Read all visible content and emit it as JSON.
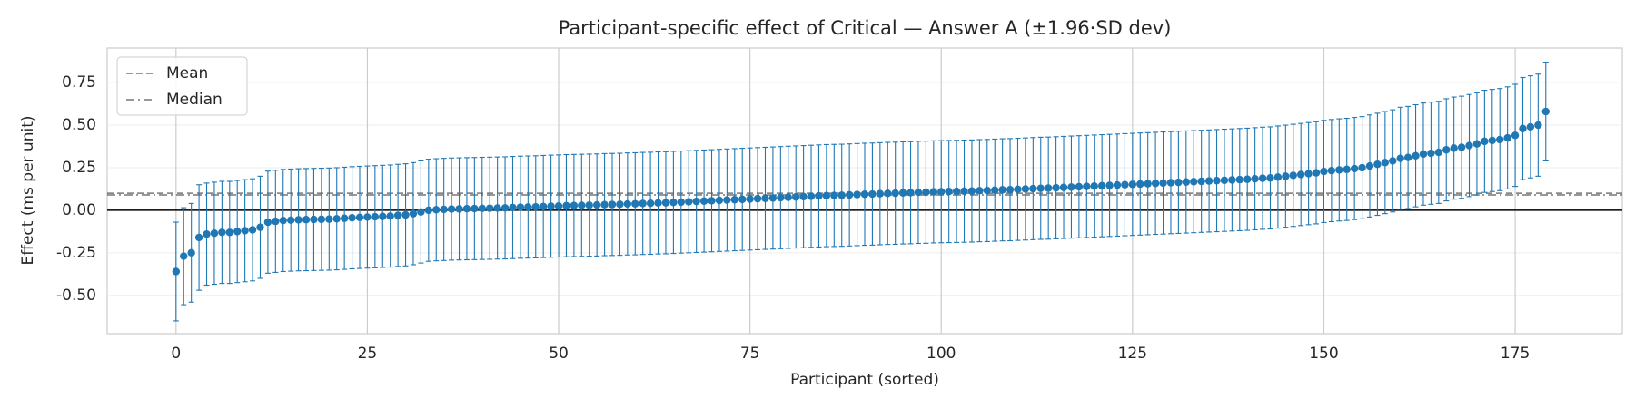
{
  "chart_data": {
    "type": "errorbar",
    "title": "Participant-specific effect of Critical — Answer A (±1.96·SD dev)",
    "xlabel": "Participant (sorted)",
    "ylabel": "Effect (ms per unit)",
    "color": "#1f77b4",
    "xlim": [
      -9,
      189
    ],
    "ylim": [
      -0.725,
      0.953
    ],
    "xticks": [
      0,
      25,
      50,
      75,
      100,
      125,
      150,
      175
    ],
    "yticks": [
      {
        "value": -0.5,
        "label": "-0.50"
      },
      -0.25,
      {
        "value": 0,
        "label": "0.00"
      },
      0.25,
      {
        "value": 0.5,
        "label": "0.50"
      },
      0.75
    ],
    "grid": true,
    "zero_line": true,
    "legend_position": "upper left",
    "reference_lines": [
      {
        "name": "Mean",
        "value": 0.1,
        "style": "dashed",
        "color": "#777777"
      },
      {
        "name": "Median",
        "value": 0.09,
        "style": "dashdot",
        "color": "#777777"
      }
    ],
    "x": [
      0,
      1,
      2,
      3,
      4,
      5,
      6,
      7,
      8,
      9,
      10,
      11,
      12,
      13,
      14,
      15,
      16,
      17,
      18,
      19,
      20,
      21,
      22,
      23,
      24,
      25,
      26,
      27,
      28,
      29,
      30,
      31,
      32,
      33,
      34,
      35,
      36,
      37,
      38,
      39,
      40,
      41,
      42,
      43,
      44,
      45,
      46,
      47,
      48,
      49,
      50,
      51,
      52,
      53,
      54,
      55,
      56,
      57,
      58,
      59,
      60,
      61,
      62,
      63,
      64,
      65,
      66,
      67,
      68,
      69,
      70,
      71,
      72,
      73,
      74,
      75,
      76,
      77,
      78,
      79,
      80,
      81,
      82,
      83,
      84,
      85,
      86,
      87,
      88,
      89,
      90,
      91,
      92,
      93,
      94,
      95,
      96,
      97,
      98,
      99,
      100,
      101,
      102,
      103,
      104,
      105,
      106,
      107,
      108,
      109,
      110,
      111,
      112,
      113,
      114,
      115,
      116,
      117,
      118,
      119,
      120,
      121,
      122,
      123,
      124,
      125,
      126,
      127,
      128,
      129,
      130,
      131,
      132,
      133,
      134,
      135,
      136,
      137,
      138,
      139,
      140,
      141,
      142,
      143,
      144,
      145,
      146,
      147,
      148,
      149,
      150,
      151,
      152,
      153,
      154,
      155,
      156,
      157,
      158,
      159,
      160,
      161,
      162,
      163,
      164,
      165,
      166,
      167,
      168,
      169,
      170,
      171,
      172,
      173,
      174,
      175,
      176,
      177,
      178,
      179
    ],
    "values": [
      -0.36,
      -0.27,
      -0.25,
      -0.16,
      -0.14,
      -0.135,
      -0.13,
      -0.13,
      -0.125,
      -0.12,
      -0.115,
      -0.1,
      -0.07,
      -0.065,
      -0.06,
      -0.058,
      -0.056,
      -0.055,
      -0.054,
      -0.053,
      -0.052,
      -0.05,
      -0.047,
      -0.044,
      -0.042,
      -0.04,
      -0.038,
      -0.036,
      -0.034,
      -0.03,
      -0.027,
      -0.02,
      -0.01,
      0.0,
      0.003,
      0.005,
      0.007,
      0.008,
      0.009,
      0.01,
      0.011,
      0.012,
      0.013,
      0.014,
      0.016,
      0.018,
      0.019,
      0.02,
      0.022,
      0.024,
      0.025,
      0.027,
      0.028,
      0.029,
      0.03,
      0.031,
      0.033,
      0.034,
      0.035,
      0.037,
      0.038,
      0.04,
      0.041,
      0.043,
      0.044,
      0.046,
      0.048,
      0.05,
      0.052,
      0.054,
      0.056,
      0.058,
      0.06,
      0.062,
      0.064,
      0.066,
      0.068,
      0.07,
      0.072,
      0.074,
      0.076,
      0.078,
      0.08,
      0.082,
      0.084,
      0.086,
      0.087,
      0.088,
      0.09,
      0.092,
      0.094,
      0.095,
      0.097,
      0.099,
      0.1,
      0.102,
      0.103,
      0.105,
      0.106,
      0.108,
      0.109,
      0.11,
      0.111,
      0.112,
      0.113,
      0.115,
      0.116,
      0.118,
      0.12,
      0.121,
      0.123,
      0.125,
      0.127,
      0.129,
      0.13,
      0.132,
      0.134,
      0.136,
      0.138,
      0.14,
      0.142,
      0.144,
      0.146,
      0.148,
      0.15,
      0.152,
      0.154,
      0.156,
      0.158,
      0.16,
      0.162,
      0.164,
      0.166,
      0.168,
      0.17,
      0.172,
      0.174,
      0.176,
      0.178,
      0.18,
      0.182,
      0.185,
      0.188,
      0.19,
      0.195,
      0.2,
      0.205,
      0.21,
      0.215,
      0.22,
      0.228,
      0.233,
      0.237,
      0.24,
      0.245,
      0.25,
      0.26,
      0.27,
      0.28,
      0.29,
      0.305,
      0.31,
      0.32,
      0.33,
      0.335,
      0.34,
      0.355,
      0.365,
      0.37,
      0.38,
      0.39,
      0.405,
      0.41,
      0.415,
      0.425,
      0.44,
      0.48,
      0.49,
      0.5,
      0.58
    ],
    "errors": [
      0.29,
      0.285,
      0.29,
      0.31,
      0.3,
      0.3,
      0.3,
      0.3,
      0.3,
      0.3,
      0.3,
      0.3,
      0.3,
      0.3,
      0.3,
      0.3,
      0.3,
      0.3,
      0.3,
      0.3,
      0.3,
      0.3,
      0.3,
      0.3,
      0.3,
      0.3,
      0.3,
      0.3,
      0.3,
      0.3,
      0.3,
      0.3,
      0.3,
      0.3,
      0.3,
      0.3,
      0.3,
      0.3,
      0.3,
      0.3,
      0.3,
      0.3,
      0.3,
      0.3,
      0.3,
      0.3,
      0.3,
      0.3,
      0.3,
      0.3,
      0.3,
      0.3,
      0.3,
      0.3,
      0.3,
      0.3,
      0.3,
      0.3,
      0.3,
      0.3,
      0.3,
      0.3,
      0.3,
      0.3,
      0.3,
      0.3,
      0.3,
      0.3,
      0.3,
      0.3,
      0.3,
      0.3,
      0.3,
      0.3,
      0.3,
      0.3,
      0.3,
      0.3,
      0.3,
      0.3,
      0.3,
      0.3,
      0.3,
      0.3,
      0.3,
      0.3,
      0.3,
      0.3,
      0.3,
      0.3,
      0.3,
      0.3,
      0.3,
      0.3,
      0.3,
      0.3,
      0.3,
      0.3,
      0.3,
      0.3,
      0.3,
      0.3,
      0.3,
      0.3,
      0.3,
      0.3,
      0.3,
      0.3,
      0.3,
      0.3,
      0.3,
      0.3,
      0.3,
      0.3,
      0.3,
      0.3,
      0.3,
      0.3,
      0.3,
      0.3,
      0.3,
      0.3,
      0.3,
      0.3,
      0.3,
      0.3,
      0.3,
      0.3,
      0.3,
      0.3,
      0.3,
      0.3,
      0.3,
      0.3,
      0.3,
      0.3,
      0.3,
      0.3,
      0.3,
      0.3,
      0.3,
      0.3,
      0.3,
      0.3,
      0.3,
      0.3,
      0.3,
      0.3,
      0.3,
      0.3,
      0.3,
      0.3,
      0.3,
      0.3,
      0.3,
      0.3,
      0.3,
      0.3,
      0.3,
      0.3,
      0.3,
      0.3,
      0.3,
      0.3,
      0.3,
      0.3,
      0.3,
      0.3,
      0.3,
      0.3,
      0.3,
      0.3,
      0.3,
      0.3,
      0.3,
      0.3,
      0.3,
      0.3,
      0.3,
      0.29
    ]
  }
}
